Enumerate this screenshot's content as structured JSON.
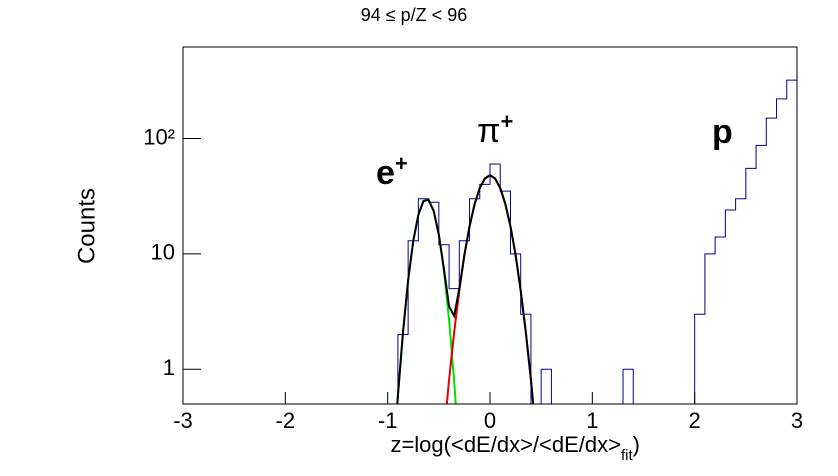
{
  "chart_data": {
    "type": "histogram",
    "title": "94 ≤ p/Z < 96",
    "y_label": "Counts",
    "x_label": "z=log(<dE/dx>/<dE/dx>",
    "x_label_sub": "fit",
    "x_label_end": ")",
    "log_y": true,
    "color": "#000099",
    "bins": [
      -3,
      -2.9,
      -2.8,
      -2.7,
      -2.6,
      -2.5,
      -2.4,
      -2.3,
      -2.2,
      -2.1,
      -2,
      -1.9,
      -1.8,
      -1.7,
      -1.6,
      -1.5,
      -1.4,
      -1.3,
      -1.2,
      -1.1,
      -1,
      -0.9,
      -0.8,
      -0.7,
      -0.6,
      -0.5,
      -0.4,
      -0.3,
      -0.2,
      -0.1,
      0,
      0.1,
      0.2,
      0.3,
      0.4,
      0.5,
      0.6,
      0.7,
      0.8,
      0.9,
      1,
      1.1,
      1.2,
      1.3,
      1.4,
      1.5,
      1.6,
      1.7,
      1.8,
      1.9,
      2,
      2.1,
      2.2,
      2.3,
      2.4,
      2.5,
      2.6,
      2.7,
      2.8,
      2.9,
      3
    ],
    "values": [
      0,
      0,
      0,
      0,
      0,
      0,
      0,
      0,
      0,
      0,
      0,
      0,
      0,
      0,
      0,
      0,
      0,
      0,
      0,
      0,
      0,
      2,
      13,
      30,
      28,
      12,
      5,
      13,
      30,
      40,
      60,
      35,
      10,
      3,
      0,
      1,
      0,
      0,
      0,
      0,
      0,
      0,
      0,
      1,
      0,
      0,
      0,
      0,
      0,
      0,
      3,
      10,
      14,
      24,
      30,
      55,
      87,
      150,
      220,
      320
    ],
    "fits": [
      {
        "color": "#00e000",
        "x": [
          -0.95,
          -0.9,
          -0.85,
          -0.8,
          -0.75,
          -0.7,
          -0.65,
          -0.6,
          -0.55,
          -0.5,
          -0.45,
          -0.4,
          -0.35,
          -0.3
        ],
        "values": [
          0.13,
          0.59,
          2.1,
          5.9,
          12.9,
          21.8,
          28.7,
          29.4,
          23.5,
          14.6,
          7.1,
          2.7,
          0.78,
          0.18
        ]
      },
      {
        "color": "#e00000",
        "x": [
          -0.5,
          -0.45,
          -0.4,
          -0.35,
          -0.3,
          -0.25,
          -0.2,
          -0.15,
          -0.1,
          -0.05,
          0,
          0.05,
          0.1,
          0.15,
          0.2,
          0.25,
          0.3,
          0.35,
          0.4,
          0.45
        ],
        "values": [
          0.08,
          0.27,
          0.81,
          2.1,
          4.8,
          9.8,
          17.3,
          27,
          37.2,
          45,
          48,
          45,
          37.2,
          27,
          17.3,
          9.8,
          4.8,
          2.1,
          0.81,
          0.27
        ]
      },
      {
        "color": "#000000",
        "x": [
          -0.95,
          -0.9,
          -0.85,
          -0.8,
          -0.75,
          -0.7,
          -0.65,
          -0.6,
          -0.55,
          -0.5,
          -0.45,
          -0.4,
          -0.35,
          -0.3,
          -0.25,
          -0.2,
          -0.15,
          -0.1,
          -0.05,
          0,
          0.05,
          0.1,
          0.15,
          0.2,
          0.25,
          0.3,
          0.35,
          0.4,
          0.45
        ],
        "values": [
          0.13,
          0.59,
          2.1,
          5.9,
          12.9,
          21.8,
          28.7,
          29.4,
          23.5,
          14.7,
          7.4,
          3.5,
          2.9,
          5,
          9.8,
          17.3,
          27,
          37.2,
          45,
          48,
          45,
          37.2,
          27,
          17.3,
          9.8,
          4.8,
          2.1,
          0.81,
          0.27
        ]
      }
    ],
    "annotations": [
      {
        "text": "e",
        "sup": "+"
      },
      {
        "text": "π",
        "sup": "+"
      },
      {
        "text": "p"
      }
    ],
    "xlim": [
      -3,
      3
    ],
    "xticks": [
      -3,
      -2,
      -1,
      0,
      1,
      2,
      3
    ],
    "ylim": [
      0.5,
      620
    ],
    "yticks": [
      1,
      10,
      {
        "value": 100,
        "label": "10²"
      }
    ]
  }
}
